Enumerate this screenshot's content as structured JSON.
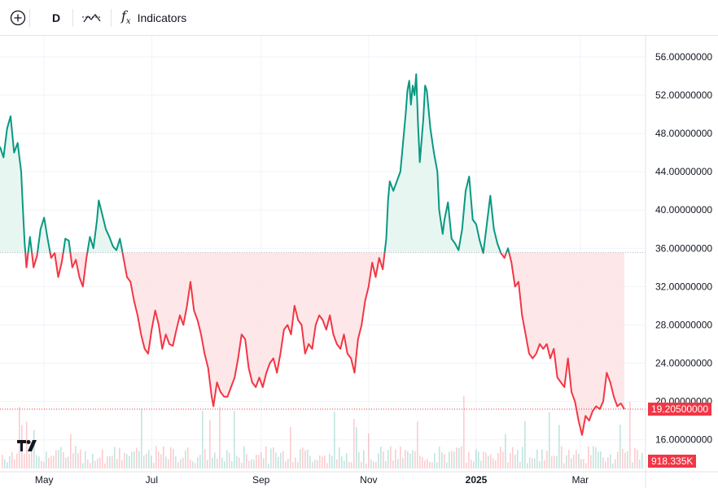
{
  "toolbar": {
    "add_icon": "plus-circle-icon",
    "interval": "D",
    "compare_icon": "compare-icon",
    "indicators_icon": "fx-icon",
    "indicators_label": "Indicators"
  },
  "colors": {
    "up": "#089981",
    "down": "#f23645",
    "up_fill": "#e6f5f1",
    "down_fill": "#fde4e6",
    "grid": "#f0f3fa",
    "text": "#131722"
  },
  "chart_data": {
    "type": "line",
    "x_axis_labels": [
      {
        "label": "May",
        "date": "2024-05-01"
      },
      {
        "label": "Jul",
        "date": "2024-07-01"
      },
      {
        "label": "Sep",
        "date": "2024-09-01"
      },
      {
        "label": "Nov",
        "date": "2024-11-01"
      },
      {
        "label": "2025",
        "date": "2025-01-01"
      },
      {
        "label": "Mar",
        "date": "2025-03-01"
      }
    ],
    "x_range": [
      "2024-04-06",
      "2025-04-07"
    ],
    "y_tick_labels": [
      "16.00000000",
      "20.00000000",
      "24.00000000",
      "28.00000000",
      "32.00000000",
      "36.00000000",
      "40.00000000",
      "44.00000000",
      "48.00000000",
      "52.00000000",
      "56.00000000"
    ],
    "ylim": [
      13.0,
      58.2
    ],
    "baseline": 35.55,
    "series": [
      {
        "points": [
          [
            "2024-04-06",
            46.6
          ],
          [
            "2024-04-08",
            45.5
          ],
          [
            "2024-04-10",
            48.5
          ],
          [
            "2024-04-12",
            49.8
          ],
          [
            "2024-04-14",
            46.0
          ],
          [
            "2024-04-16",
            47.0
          ],
          [
            "2024-04-18",
            44.0
          ],
          [
            "2024-04-19",
            40.0
          ],
          [
            "2024-04-20",
            36.5
          ],
          [
            "2024-04-21",
            34.0
          ],
          [
            "2024-04-23",
            37.2
          ],
          [
            "2024-04-25",
            34.0
          ],
          [
            "2024-04-27",
            35.2
          ],
          [
            "2024-04-29",
            38.0
          ],
          [
            "2024-05-01",
            39.2
          ],
          [
            "2024-05-03",
            37.0
          ],
          [
            "2024-05-05",
            35.0
          ],
          [
            "2024-05-07",
            35.5
          ],
          [
            "2024-05-09",
            33.0
          ],
          [
            "2024-05-11",
            34.5
          ],
          [
            "2024-05-13",
            37.0
          ],
          [
            "2024-05-15",
            36.8
          ],
          [
            "2024-05-17",
            34.0
          ],
          [
            "2024-05-19",
            34.8
          ],
          [
            "2024-05-21",
            33.0
          ],
          [
            "2024-05-23",
            32.0
          ],
          [
            "2024-05-25",
            35.0
          ],
          [
            "2024-05-27",
            37.2
          ],
          [
            "2024-05-29",
            36.0
          ],
          [
            "2024-05-31",
            39.0
          ],
          [
            "2024-06-01",
            41.0
          ],
          [
            "2024-06-03",
            39.5
          ],
          [
            "2024-06-05",
            38.0
          ],
          [
            "2024-06-07",
            37.2
          ],
          [
            "2024-06-09",
            36.2
          ],
          [
            "2024-06-11",
            35.8
          ],
          [
            "2024-06-13",
            37.0
          ],
          [
            "2024-06-15",
            35.0
          ],
          [
            "2024-06-17",
            33.0
          ],
          [
            "2024-06-19",
            32.5
          ],
          [
            "2024-06-21",
            30.5
          ],
          [
            "2024-06-23",
            29.0
          ],
          [
            "2024-06-25",
            27.0
          ],
          [
            "2024-06-27",
            25.5
          ],
          [
            "2024-06-29",
            25.0
          ],
          [
            "2024-07-01",
            27.5
          ],
          [
            "2024-07-03",
            29.5
          ],
          [
            "2024-07-05",
            28.0
          ],
          [
            "2024-07-07",
            25.5
          ],
          [
            "2024-07-09",
            27.0
          ],
          [
            "2024-07-11",
            26.0
          ],
          [
            "2024-07-13",
            25.8
          ],
          [
            "2024-07-15",
            27.5
          ],
          [
            "2024-07-17",
            29.0
          ],
          [
            "2024-07-19",
            28.0
          ],
          [
            "2024-07-21",
            30.0
          ],
          [
            "2024-07-23",
            32.5
          ],
          [
            "2024-07-25",
            29.5
          ],
          [
            "2024-07-27",
            28.5
          ],
          [
            "2024-07-29",
            27.0
          ],
          [
            "2024-07-31",
            25.0
          ],
          [
            "2024-08-02",
            23.5
          ],
          [
            "2024-08-04",
            20.5
          ],
          [
            "2024-08-05",
            19.5
          ],
          [
            "2024-08-07",
            22.0
          ],
          [
            "2024-08-09",
            21.0
          ],
          [
            "2024-08-11",
            20.5
          ],
          [
            "2024-08-13",
            20.5
          ],
          [
            "2024-08-15",
            21.5
          ],
          [
            "2024-08-17",
            22.5
          ],
          [
            "2024-08-19",
            24.5
          ],
          [
            "2024-08-21",
            27.0
          ],
          [
            "2024-08-23",
            26.5
          ],
          [
            "2024-08-25",
            23.5
          ],
          [
            "2024-08-27",
            22.0
          ],
          [
            "2024-08-29",
            21.5
          ],
          [
            "2024-08-31",
            22.5
          ],
          [
            "2024-09-02",
            21.5
          ],
          [
            "2024-09-04",
            23.0
          ],
          [
            "2024-09-06",
            24.0
          ],
          [
            "2024-09-08",
            24.5
          ],
          [
            "2024-09-10",
            23.0
          ],
          [
            "2024-09-12",
            25.0
          ],
          [
            "2024-09-14",
            27.5
          ],
          [
            "2024-09-16",
            28.0
          ],
          [
            "2024-09-18",
            27.0
          ],
          [
            "2024-09-20",
            30.0
          ],
          [
            "2024-09-22",
            28.5
          ],
          [
            "2024-09-24",
            28.0
          ],
          [
            "2024-09-26",
            25.0
          ],
          [
            "2024-09-28",
            26.0
          ],
          [
            "2024-09-30",
            25.5
          ],
          [
            "2024-10-02",
            28.0
          ],
          [
            "2024-10-04",
            29.0
          ],
          [
            "2024-10-06",
            28.5
          ],
          [
            "2024-10-08",
            27.5
          ],
          [
            "2024-10-10",
            29.0
          ],
          [
            "2024-10-12",
            27.0
          ],
          [
            "2024-10-14",
            26.0
          ],
          [
            "2024-10-16",
            25.5
          ],
          [
            "2024-10-18",
            27.0
          ],
          [
            "2024-10-20",
            25.0
          ],
          [
            "2024-10-22",
            24.5
          ],
          [
            "2024-10-24",
            23.0
          ],
          [
            "2024-10-26",
            26.5
          ],
          [
            "2024-10-28",
            28.0
          ],
          [
            "2024-10-30",
            30.5
          ],
          [
            "2024-11-01",
            32.0
          ],
          [
            "2024-11-03",
            34.5
          ],
          [
            "2024-11-05",
            33.0
          ],
          [
            "2024-11-07",
            35.0
          ],
          [
            "2024-11-09",
            33.8
          ],
          [
            "2024-11-11",
            37.0
          ],
          [
            "2024-11-12",
            41.0
          ],
          [
            "2024-11-13",
            43.0
          ],
          [
            "2024-11-15",
            42.0
          ],
          [
            "2024-11-17",
            43.0
          ],
          [
            "2024-11-19",
            44.0
          ],
          [
            "2024-11-20",
            46.0
          ],
          [
            "2024-11-22",
            50.0
          ],
          [
            "2024-11-23",
            52.5
          ],
          [
            "2024-11-24",
            53.5
          ],
          [
            "2024-11-25",
            51.0
          ],
          [
            "2024-11-26",
            53.0
          ],
          [
            "2024-11-27",
            52.0
          ],
          [
            "2024-11-28",
            54.2
          ],
          [
            "2024-11-29",
            49.0
          ],
          [
            "2024-11-30",
            45.0
          ],
          [
            "2024-12-02",
            49.5
          ],
          [
            "2024-12-03",
            53.0
          ],
          [
            "2024-12-04",
            52.5
          ],
          [
            "2024-12-06",
            48.5
          ],
          [
            "2024-12-08",
            46.0
          ],
          [
            "2024-12-10",
            44.0
          ],
          [
            "2024-12-11",
            40.0
          ],
          [
            "2024-12-13",
            37.5
          ],
          [
            "2024-12-14",
            39.0
          ],
          [
            "2024-12-16",
            40.8
          ],
          [
            "2024-12-18",
            37.0
          ],
          [
            "2024-12-20",
            36.5
          ],
          [
            "2024-12-22",
            35.8
          ],
          [
            "2024-12-24",
            38.0
          ],
          [
            "2024-12-26",
            42.0
          ],
          [
            "2024-12-28",
            43.5
          ],
          [
            "2024-12-30",
            39.0
          ],
          [
            "2025-01-01",
            38.5
          ],
          [
            "2025-01-03",
            36.8
          ],
          [
            "2025-01-05",
            35.5
          ],
          [
            "2025-01-07",
            38.5
          ],
          [
            "2025-01-09",
            41.5
          ],
          [
            "2025-01-11",
            38.0
          ],
          [
            "2025-01-13",
            36.5
          ],
          [
            "2025-01-15",
            35.5
          ],
          [
            "2025-01-17",
            35.0
          ],
          [
            "2025-01-19",
            36.0
          ],
          [
            "2025-01-21",
            34.5
          ],
          [
            "2025-01-23",
            32.0
          ],
          [
            "2025-01-25",
            32.5
          ],
          [
            "2025-01-27",
            29.0
          ],
          [
            "2025-01-29",
            27.0
          ],
          [
            "2025-01-31",
            25.0
          ],
          [
            "2025-02-02",
            24.5
          ],
          [
            "2025-02-04",
            25.0
          ],
          [
            "2025-02-06",
            26.0
          ],
          [
            "2025-02-08",
            25.5
          ],
          [
            "2025-02-10",
            26.0
          ],
          [
            "2025-02-12",
            24.5
          ],
          [
            "2025-02-14",
            25.5
          ],
          [
            "2025-02-16",
            22.5
          ],
          [
            "2025-02-18",
            22.0
          ],
          [
            "2025-02-20",
            21.5
          ],
          [
            "2025-02-22",
            24.5
          ],
          [
            "2025-02-24",
            21.0
          ],
          [
            "2025-02-26",
            20.0
          ],
          [
            "2025-02-28",
            18.0
          ],
          [
            "2025-03-02",
            16.5
          ],
          [
            "2025-03-04",
            18.5
          ],
          [
            "2025-03-06",
            18.0
          ],
          [
            "2025-03-08",
            19.0
          ],
          [
            "2025-03-10",
            19.5
          ],
          [
            "2025-03-12",
            19.2
          ],
          [
            "2025-03-14",
            20.0
          ],
          [
            "2025-03-16",
            23.0
          ],
          [
            "2025-03-18",
            22.0
          ],
          [
            "2025-03-20",
            20.5
          ],
          [
            "2025-03-22",
            19.5
          ],
          [
            "2025-03-24",
            19.8
          ],
          [
            "2025-03-26",
            19.205
          ]
        ]
      }
    ],
    "volume_ticks_of_30_days": "daily",
    "price_badge": {
      "label": "19.20500000",
      "value": 19.205
    },
    "volume_badge": {
      "label": "918.335K"
    },
    "grid": true
  }
}
